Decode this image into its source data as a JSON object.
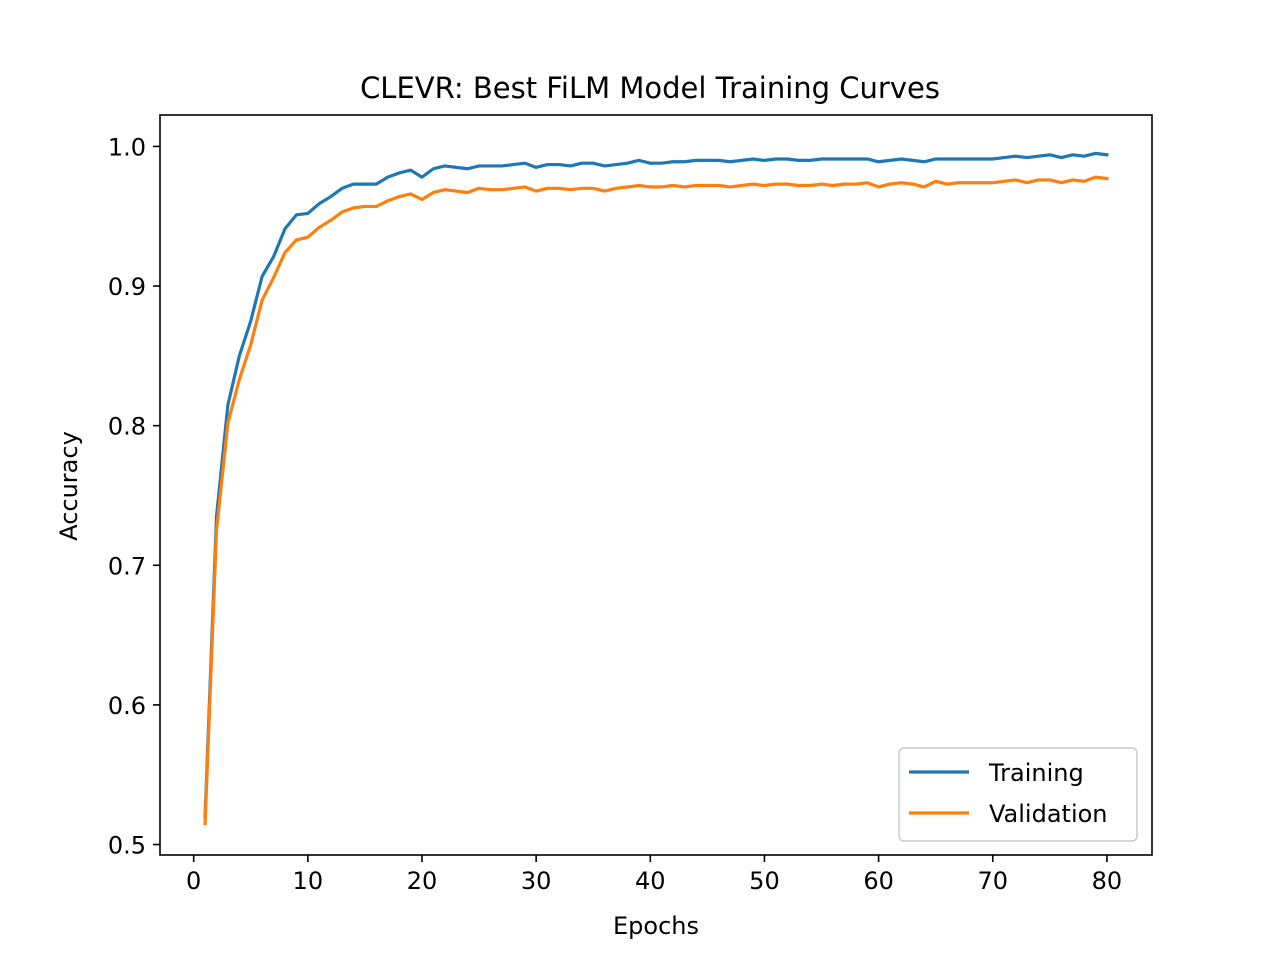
{
  "chart_data": {
    "type": "line",
    "title": "CLEVR: Best FiLM Model Training Curves",
    "xlabel": "Epochs",
    "ylabel": "Accuracy",
    "xlim": [
      -2.95,
      83.95
    ],
    "ylim": [
      0.4925,
      1.0225
    ],
    "xticks": [
      0,
      10,
      20,
      30,
      40,
      50,
      60,
      70,
      80
    ],
    "xtick_labels": [
      "0",
      "10",
      "20",
      "30",
      "40",
      "50",
      "60",
      "70",
      "80"
    ],
    "yticks": [
      0.5,
      0.6,
      0.7,
      0.8,
      0.9,
      1.0
    ],
    "ytick_labels": [
      "0.5",
      "0.6",
      "0.7",
      "0.8",
      "0.9",
      "1.0"
    ],
    "grid": false,
    "legend_position": "lower-right",
    "x": [
      1,
      2,
      3,
      4,
      5,
      6,
      7,
      8,
      9,
      10,
      11,
      12,
      13,
      14,
      15,
      16,
      17,
      18,
      19,
      20,
      21,
      22,
      23,
      24,
      25,
      26,
      27,
      28,
      29,
      30,
      31,
      32,
      33,
      34,
      35,
      36,
      37,
      38,
      39,
      40,
      41,
      42,
      43,
      44,
      45,
      46,
      47,
      48,
      49,
      50,
      51,
      52,
      53,
      54,
      55,
      56,
      57,
      58,
      59,
      60,
      61,
      62,
      63,
      64,
      65,
      66,
      67,
      68,
      69,
      70,
      71,
      72,
      73,
      74,
      75,
      76,
      77,
      78,
      79,
      80
    ],
    "series": [
      {
        "name": "Training",
        "color": "#1f77b4",
        "values": [
          0.52,
          0.735,
          0.815,
          0.85,
          0.875,
          0.907,
          0.921,
          0.941,
          0.951,
          0.952,
          0.959,
          0.964,
          0.97,
          0.973,
          0.973,
          0.973,
          0.978,
          0.981,
          0.983,
          0.978,
          0.984,
          0.986,
          0.985,
          0.984,
          0.986,
          0.986,
          0.986,
          0.987,
          0.988,
          0.985,
          0.987,
          0.987,
          0.986,
          0.988,
          0.988,
          0.986,
          0.987,
          0.988,
          0.99,
          0.988,
          0.988,
          0.989,
          0.989,
          0.99,
          0.99,
          0.99,
          0.989,
          0.99,
          0.991,
          0.99,
          0.991,
          0.991,
          0.99,
          0.99,
          0.991,
          0.991,
          0.991,
          0.991,
          0.991,
          0.989,
          0.99,
          0.991,
          0.99,
          0.989,
          0.991,
          0.991,
          0.991,
          0.991,
          0.991,
          0.991,
          0.992,
          0.993,
          0.992,
          0.993,
          0.994,
          0.992,
          0.994,
          0.993,
          0.995,
          0.994
        ]
      },
      {
        "name": "Validation",
        "color": "#ff7f0e",
        "values": [
          0.515,
          0.725,
          0.802,
          0.833,
          0.858,
          0.89,
          0.906,
          0.924,
          0.933,
          0.935,
          0.942,
          0.947,
          0.953,
          0.956,
          0.957,
          0.957,
          0.961,
          0.964,
          0.966,
          0.962,
          0.967,
          0.969,
          0.968,
          0.967,
          0.97,
          0.969,
          0.969,
          0.97,
          0.971,
          0.968,
          0.97,
          0.97,
          0.969,
          0.97,
          0.97,
          0.968,
          0.97,
          0.971,
          0.972,
          0.971,
          0.971,
          0.972,
          0.971,
          0.972,
          0.972,
          0.972,
          0.971,
          0.972,
          0.973,
          0.972,
          0.973,
          0.973,
          0.972,
          0.972,
          0.973,
          0.972,
          0.973,
          0.973,
          0.974,
          0.971,
          0.973,
          0.974,
          0.973,
          0.971,
          0.975,
          0.973,
          0.974,
          0.974,
          0.974,
          0.974,
          0.975,
          0.976,
          0.974,
          0.976,
          0.976,
          0.974,
          0.976,
          0.975,
          0.978,
          0.977
        ]
      }
    ]
  }
}
